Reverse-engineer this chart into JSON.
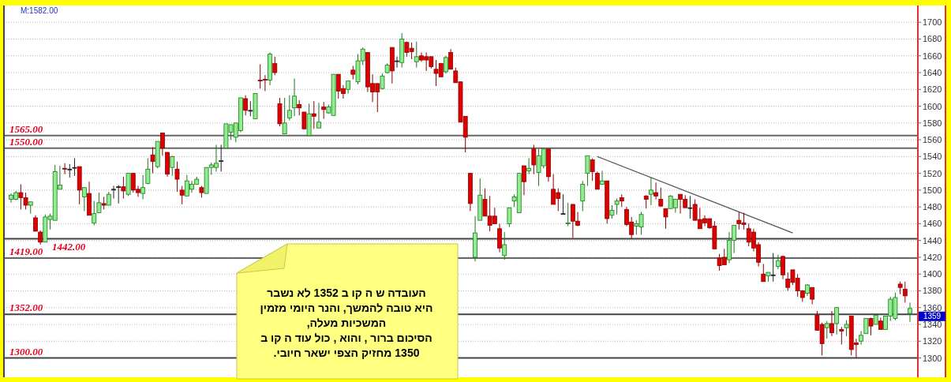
{
  "chart_data": {
    "type": "candlestick",
    "categories": [
      null,
      null,
      null,
      null,
      null,
      null,
      null,
      null,
      null,
      null,
      null,
      null,
      null,
      null,
      null,
      null,
      null,
      null,
      null,
      null,
      null,
      null,
      null,
      null,
      null,
      null,
      null,
      null,
      null,
      null,
      null,
      null,
      null,
      null,
      null,
      null,
      null,
      null,
      null,
      null,
      null,
      null,
      null,
      null,
      null,
      null,
      null,
      null,
      null,
      null,
      null,
      null,
      null,
      null,
      null,
      null,
      null,
      null,
      null,
      null,
      null,
      null,
      null,
      null,
      null,
      null,
      null,
      null,
      null,
      null,
      null,
      null,
      null,
      null,
      null,
      null,
      null,
      null,
      null,
      null,
      null,
      null,
      null,
      null,
      null,
      null,
      null,
      null,
      null,
      null,
      null,
      null,
      null,
      null,
      null,
      null,
      null,
      null,
      null,
      null,
      null,
      null,
      null,
      null,
      null,
      null,
      null,
      null,
      null,
      null,
      null,
      null,
      null,
      null,
      null,
      null,
      null,
      null,
      null,
      null,
      null,
      null,
      null,
      null,
      null,
      null,
      null,
      null,
      null,
      null,
      null,
      null,
      null,
      null,
      null,
      null,
      null,
      null,
      null,
      null,
      null,
      null,
      null,
      null,
      null,
      null,
      null,
      null,
      null,
      null,
      null,
      null,
      null,
      null,
      null,
      null,
      null,
      null,
      null,
      null,
      null,
      null,
      null,
      null,
      null,
      null,
      null,
      null,
      null,
      null,
      null,
      null,
      null,
      null,
      null,
      null,
      null,
      null,
      null,
      null,
      null,
      null,
      null,
      null,
      null
    ],
    "ohlc": [
      [
        1489,
        1496,
        1485,
        1494
      ],
      [
        1489,
        1499,
        1488,
        1497
      ],
      [
        1497,
        1507,
        1477,
        1491
      ],
      [
        1491,
        1497,
        1477,
        1482
      ],
      [
        1482,
        1486,
        1472,
        1486
      ],
      [
        1467,
        1470,
        1451,
        1451
      ],
      [
        1450,
        1452,
        1435,
        1438
      ],
      [
        1438,
        1471,
        1438,
        1468
      ],
      [
        1465,
        1472,
        1453,
        1469
      ],
      [
        1464,
        1530,
        1464,
        1522
      ],
      [
        1501,
        1529,
        1501,
        1506
      ],
      [
        1526,
        1532,
        1519,
        1525
      ],
      [
        1525,
        1531,
        1515,
        1525
      ],
      [
        1527,
        1538,
        1517,
        1527
      ],
      [
        1528,
        1528,
        1483,
        1500
      ],
      [
        1492,
        1503,
        1475,
        1503
      ],
      [
        1496,
        1510,
        1470,
        1470
      ],
      [
        1461,
        1487,
        1458,
        1472
      ],
      [
        1473,
        1497,
        1473,
        1485
      ],
      [
        1484,
        1492,
        1477,
        1482
      ],
      [
        1482,
        1498,
        1482,
        1495
      ],
      [
        1501,
        1505,
        1490,
        1501
      ],
      [
        1504,
        1506,
        1484,
        1504
      ],
      [
        1504,
        1516,
        1490,
        1499
      ],
      [
        1495,
        1520,
        1493,
        1520
      ],
      [
        1520,
        1520,
        1497,
        1500
      ],
      [
        1501,
        1505,
        1492,
        1497
      ],
      [
        1496,
        1518,
        1489,
        1503
      ],
      [
        1508,
        1538,
        1507,
        1525
      ],
      [
        1542,
        1551,
        1520,
        1534
      ],
      [
        1528,
        1558,
        1526,
        1558
      ],
      [
        1568,
        1568,
        1541,
        1550
      ],
      [
        1545,
        1545,
        1516,
        1519
      ],
      [
        1527,
        1541,
        1517,
        1540
      ],
      [
        1525,
        1534,
        1498,
        1513
      ],
      [
        1500,
        1505,
        1483,
        1494
      ],
      [
        1493,
        1518,
        1493,
        1511
      ],
      [
        1501,
        1511,
        1497,
        1507
      ],
      [
        1507,
        1516,
        1507,
        1513
      ],
      [
        1503,
        1505,
        1491,
        1497
      ],
      [
        1496,
        1527,
        1496,
        1527
      ],
      [
        1527,
        1533,
        1518,
        1530
      ],
      [
        1527,
        1554,
        1522,
        1532
      ],
      [
        1535,
        1554,
        1522,
        1535
      ],
      [
        1550,
        1579,
        1550,
        1579
      ],
      [
        1569,
        1578,
        1560,
        1578
      ],
      [
        1563,
        1580,
        1557,
        1580
      ],
      [
        1571,
        1610,
        1569,
        1610
      ],
      [
        1609,
        1613,
        1589,
        1595
      ],
      [
        1595,
        1606,
        1588,
        1595
      ],
      [
        1585,
        1615,
        1585,
        1615
      ],
      [
        1631,
        1650,
        1621,
        1630
      ],
      [
        1632,
        1637,
        1618,
        1631
      ],
      [
        1631,
        1664,
        1625,
        1662
      ],
      [
        1651,
        1659,
        1637,
        1640
      ],
      [
        1603,
        1610,
        1576,
        1579
      ],
      [
        1567,
        1610,
        1567,
        1580
      ],
      [
        1586,
        1613,
        1583,
        1595
      ],
      [
        1598,
        1633,
        1588,
        1612
      ],
      [
        1602,
        1607,
        1589,
        1598
      ],
      [
        1593,
        1593,
        1573,
        1573
      ],
      [
        1565,
        1603,
        1565,
        1591
      ],
      [
        1591,
        1606,
        1573,
        1588
      ],
      [
        1574,
        1604,
        1574,
        1581
      ],
      [
        1599,
        1605,
        1585,
        1596
      ],
      [
        1592,
        1602,
        1591,
        1599
      ],
      [
        1589,
        1638,
        1589,
        1638
      ],
      [
        1638,
        1638,
        1609,
        1618
      ],
      [
        1621,
        1625,
        1609,
        1615
      ],
      [
        1620,
        1630,
        1615,
        1630
      ],
      [
        1643,
        1648,
        1632,
        1638
      ],
      [
        1629,
        1662,
        1626,
        1654
      ],
      [
        1654,
        1670,
        1649,
        1668
      ],
      [
        1664,
        1664,
        1617,
        1623
      ],
      [
        1627,
        1638,
        1605,
        1617
      ],
      [
        1627,
        1627,
        1593,
        1617
      ],
      [
        1621,
        1639,
        1620,
        1636
      ],
      [
        1640,
        1651,
        1639,
        1649
      ],
      [
        1670,
        1670,
        1627,
        1642
      ],
      [
        1654,
        1659,
        1646,
        1654
      ],
      [
        1652,
        1687,
        1646,
        1680
      ],
      [
        1676,
        1677,
        1659,
        1664
      ],
      [
        1669,
        1676,
        1656,
        1665
      ],
      [
        1653,
        1677,
        1646,
        1659
      ],
      [
        1660,
        1664,
        1653,
        1655
      ],
      [
        1659,
        1664,
        1642,
        1655
      ],
      [
        1659,
        1659,
        1645,
        1647
      ],
      [
        1644,
        1655,
        1624,
        1639
      ],
      [
        1651,
        1651,
        1635,
        1635
      ],
      [
        1641,
        1660,
        1639,
        1658
      ],
      [
        1664,
        1668,
        1644,
        1644
      ],
      [
        1642,
        1646,
        1628,
        1628
      ],
      [
        1629,
        1629,
        1581,
        1581
      ],
      [
        1588,
        1588,
        1545,
        1563
      ],
      [
        1520,
        1520,
        1475,
        1484
      ],
      [
        1420,
        1469,
        1415,
        1449
      ],
      [
        1464,
        1514,
        1464,
        1494
      ],
      [
        1489,
        1502,
        1469,
        1469
      ],
      [
        1469,
        1493,
        1451,
        1458
      ],
      [
        1469,
        1479,
        1460,
        1460
      ],
      [
        1454,
        1460,
        1426,
        1431
      ],
      [
        1422,
        1450,
        1417,
        1435
      ],
      [
        1460,
        1479,
        1456,
        1479
      ],
      [
        1487,
        1495,
        1480,
        1492
      ],
      [
        1473,
        1520,
        1473,
        1520
      ],
      [
        1529,
        1529,
        1494,
        1510
      ],
      [
        1523,
        1538,
        1519,
        1526
      ],
      [
        1549,
        1554,
        1519,
        1530
      ],
      [
        1521,
        1549,
        1505,
        1541
      ],
      [
        1529,
        1549,
        1526,
        1549
      ],
      [
        1549,
        1549,
        1510,
        1516
      ],
      [
        1501,
        1519,
        1483,
        1483
      ],
      [
        1497,
        1502,
        1475,
        1490
      ],
      [
        1472,
        1495,
        1471,
        1472
      ],
      [
        1460,
        1485,
        1457,
        1461
      ],
      [
        1483,
        1483,
        1443,
        1463
      ],
      [
        1463,
        1474,
        1457,
        1458
      ],
      [
        1487,
        1511,
        1475,
        1507
      ],
      [
        1520,
        1541,
        1505,
        1541
      ],
      [
        1536,
        1538,
        1511,
        1522
      ],
      [
        1520,
        1522,
        1501,
        1501
      ],
      [
        1507,
        1523,
        1507,
        1511
      ],
      [
        1511,
        1511,
        1460,
        1466
      ],
      [
        1470,
        1482,
        1466,
        1476
      ],
      [
        1483,
        1490,
        1471,
        1487
      ],
      [
        1491,
        1495,
        1480,
        1487
      ],
      [
        1477,
        1480,
        1457,
        1459
      ],
      [
        1462,
        1468,
        1442,
        1447
      ],
      [
        1457,
        1464,
        1447,
        1460
      ],
      [
        1456,
        1474,
        1447,
        1471
      ],
      [
        1493,
        1494,
        1478,
        1489
      ],
      [
        1495,
        1515,
        1482,
        1500
      ],
      [
        1497,
        1509,
        1489,
        1493
      ],
      [
        1489,
        1503,
        1480,
        1481
      ],
      [
        1478,
        1478,
        1454,
        1468
      ],
      [
        1478,
        1494,
        1478,
        1493
      ],
      [
        1479,
        1489,
        1473,
        1489
      ],
      [
        1495,
        1495,
        1472,
        1489
      ],
      [
        1489,
        1494,
        1479,
        1479
      ],
      [
        1479,
        1493,
        1466,
        1479
      ],
      [
        1483,
        1489,
        1464,
        1464
      ],
      [
        1465,
        1479,
        1454,
        1454
      ],
      [
        1466,
        1470,
        1457,
        1461
      ],
      [
        1466,
        1466,
        1454,
        1455
      ],
      [
        1457,
        1463,
        1430,
        1430
      ],
      [
        1419,
        1424,
        1404,
        1410
      ],
      [
        1420,
        1430,
        1411,
        1411
      ],
      [
        1417,
        1450,
        1413,
        1440
      ],
      [
        1440,
        1458,
        1425,
        1458
      ],
      [
        1464,
        1474,
        1453,
        1460
      ],
      [
        1461,
        1473,
        1453,
        1459
      ],
      [
        1454,
        1460,
        1433,
        1438
      ],
      [
        1450,
        1454,
        1427,
        1431
      ],
      [
        1435,
        1438,
        1409,
        1414
      ],
      [
        1400,
        1412,
        1391,
        1391
      ],
      [
        1398,
        1402,
        1391,
        1402
      ],
      [
        1399,
        1425,
        1391,
        1399
      ],
      [
        1409,
        1423,
        1406,
        1416
      ],
      [
        1421,
        1422,
        1394,
        1399
      ],
      [
        1394,
        1402,
        1380,
        1384
      ],
      [
        1405,
        1405,
        1387,
        1390
      ],
      [
        1395,
        1400,
        1373,
        1380
      ],
      [
        1380,
        1381,
        1367,
        1372
      ],
      [
        1377,
        1388,
        1374,
        1387
      ],
      [
        1384,
        1384,
        1364,
        1370
      ],
      [
        1351,
        1356,
        1333,
        1333
      ],
      [
        1340,
        1342,
        1303,
        1317
      ],
      [
        1336,
        1344,
        1323,
        1341
      ],
      [
        1341,
        1356,
        1326,
        1330
      ],
      [
        1341,
        1360,
        1328,
        1360
      ],
      [
        1334,
        1337,
        1316,
        1332
      ],
      [
        1336,
        1345,
        1326,
        1340
      ],
      [
        1350,
        1350,
        1303,
        1310
      ],
      [
        1318,
        1323,
        1300,
        1316
      ],
      [
        1320,
        1332,
        1316,
        1327
      ],
      [
        1329,
        1347,
        1329,
        1347
      ],
      [
        1347,
        1348,
        1327,
        1338
      ],
      [
        1340,
        1353,
        1340,
        1351
      ],
      [
        1344,
        1348,
        1334,
        1334
      ],
      [
        1334,
        1350,
        1334,
        1350
      ],
      [
        1350,
        1373,
        1344,
        1370
      ],
      [
        1347,
        1378,
        1345,
        1372
      ],
      [
        1388,
        1391,
        1376,
        1384
      ],
      [
        1382,
        1391,
        1366,
        1374
      ],
      [
        1353,
        1366,
        1343,
        1359
      ]
    ],
    "series": [
      {
        "type": "line",
        "values": [
          null,
          null,
          null,
          null,
          null,
          null,
          null,
          null,
          null,
          null,
          null,
          null,
          null,
          null,
          null,
          null,
          null,
          null,
          null,
          null,
          null,
          null,
          null,
          null,
          null,
          null,
          null,
          null,
          null,
          null,
          null,
          null,
          null,
          null,
          null,
          null,
          null,
          null,
          null,
          null,
          null,
          null,
          null,
          null,
          null,
          null,
          null,
          null,
          null,
          null,
          null,
          null,
          null,
          null,
          null,
          null,
          null,
          null,
          null,
          null,
          null,
          null,
          null,
          null,
          null,
          null,
          null,
          null,
          null,
          null,
          null,
          null,
          null,
          null,
          null,
          null,
          null,
          null,
          null,
          null,
          null,
          null,
          null,
          null,
          null,
          null,
          null,
          null,
          null,
          null,
          null,
          null,
          null,
          null,
          null,
          null,
          null,
          null,
          null,
          null,
          null,
          null,
          null,
          null,
          null,
          null,
          null,
          null,
          null,
          null,
          null,
          null,
          null,
          null,
          null,
          null,
          null,
          null,
          null,
          null,
          1540,
          null,
          null,
          null,
          null,
          null,
          null,
          null,
          null,
          null,
          null,
          null,
          null,
          null,
          null,
          null,
          null,
          null,
          null,
          null,
          null,
          null,
          null,
          null,
          null,
          null,
          null,
          null,
          null,
          null,
          null,
          null,
          null,
          null,
          null,
          null,
          null,
          null,
          null,
          null,
          1449,
          null,
          null,
          null,
          null,
          null,
          null,
          null,
          null,
          null,
          null,
          null,
          null,
          null,
          null,
          null,
          null,
          null,
          null,
          null,
          null,
          null,
          null,
          null,
          null
        ],
        "color": "#555555"
      }
    ],
    "ylim": [
      1277,
      1719
    ],
    "yticks": [
      1300,
      1320,
      1340,
      1360,
      1380,
      1400,
      1420,
      1440,
      1460,
      1480,
      1500,
      1520,
      1540,
      1560,
      1580,
      1600,
      1620,
      1640,
      1660,
      1680,
      1700
    ],
    "grid": "y",
    "ref_lines": [
      {
        "axis": "y",
        "value": 1565,
        "label": "1565.00",
        "color": "#666666"
      },
      {
        "axis": "y",
        "value": 1550,
        "label": "1550.00",
        "color": "#666666"
      },
      {
        "axis": "y",
        "value": 1442,
        "label": "1442.00",
        "color": "#444444"
      },
      {
        "axis": "y",
        "value": 1419,
        "label": "1419.00",
        "color": "#666666"
      },
      {
        "axis": "y",
        "value": 1352,
        "label": "1352.00",
        "color": "#444444"
      },
      {
        "axis": "y",
        "value": 1300,
        "label": "1300.00",
        "color": "#444444"
      }
    ],
    "annotations": [
      "M:1582.00",
      "1359",
      "העובדה ש ה קו ב 1352 לא נשבר",
      "היא טובה להמשך, והנר היומי מזמין",
      "המשכיות מעלה,",
      "הסיכום ברור , והוא , כול עוד ה קו ב",
      "1350 מחזיק הצפי ישאר חיובי."
    ]
  }
}
